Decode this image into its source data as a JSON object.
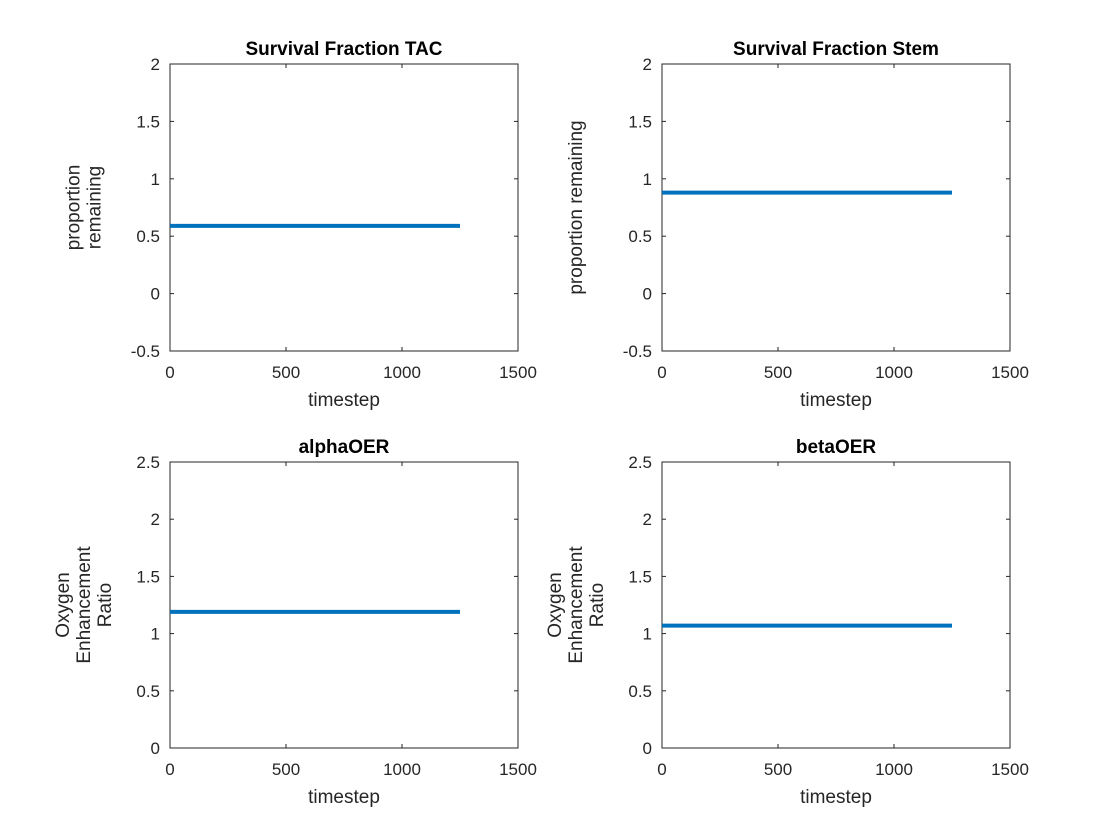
{
  "chart_data": [
    {
      "type": "line",
      "title": "Survival Fraction TAC",
      "xlabel": "timestep",
      "ylabel": [
        "proportion",
        "remaining"
      ],
      "xlim": [
        0,
        1500
      ],
      "ylim": [
        -0.5,
        2
      ],
      "xticks": [
        0,
        500,
        1000,
        1500
      ],
      "xtick_labels": [
        "0",
        "500",
        "1000",
        "1500"
      ],
      "yticks": [
        -0.5,
        0,
        0.5,
        1,
        1.5,
        2
      ],
      "ytick_labels": [
        "-0.5",
        "0",
        "0.5",
        "1",
        "1.5",
        "2"
      ],
      "grid": false,
      "color": "#0072BD",
      "series": [
        {
          "x": [
            0,
            1250
          ],
          "y": [
            0.59,
            0.59
          ]
        }
      ]
    },
    {
      "type": "line",
      "title": "Survival Fraction Stem",
      "xlabel": "timestep",
      "ylabel": [
        "proportion remaining"
      ],
      "xlim": [
        0,
        1500
      ],
      "ylim": [
        -0.5,
        2
      ],
      "xticks": [
        0,
        500,
        1000,
        1500
      ],
      "xtick_labels": [
        "0",
        "500",
        "1000",
        "1500"
      ],
      "yticks": [
        -0.5,
        0,
        0.5,
        1,
        1.5,
        2
      ],
      "ytick_labels": [
        "-0.5",
        "0",
        "0.5",
        "1",
        "1.5",
        "2"
      ],
      "grid": false,
      "color": "#0072BD",
      "series": [
        {
          "x": [
            0,
            1250
          ],
          "y": [
            0.88,
            0.88
          ]
        }
      ]
    },
    {
      "type": "line",
      "title": "alphaOER",
      "xlabel": "timestep",
      "ylabel": [
        "Oxygen",
        "Enhancement",
        "Ratio"
      ],
      "xlim": [
        0,
        1500
      ],
      "ylim": [
        0,
        2.5
      ],
      "xticks": [
        0,
        500,
        1000,
        1500
      ],
      "xtick_labels": [
        "0",
        "500",
        "1000",
        "1500"
      ],
      "yticks": [
        0,
        0.5,
        1,
        1.5,
        2,
        2.5
      ],
      "ytick_labels": [
        "0",
        "0.5",
        "1",
        "1.5",
        "2",
        "2.5"
      ],
      "grid": false,
      "color": "#0072BD",
      "series": [
        {
          "x": [
            0,
            1250
          ],
          "y": [
            1.19,
            1.19
          ]
        }
      ]
    },
    {
      "type": "line",
      "title": "betaOER",
      "xlabel": "timestep",
      "ylabel": [
        "Oxygen",
        "Enhancement",
        "Ratio"
      ],
      "xlim": [
        0,
        1500
      ],
      "ylim": [
        0,
        2.5
      ],
      "xticks": [
        0,
        500,
        1000,
        1500
      ],
      "xtick_labels": [
        "0",
        "500",
        "1000",
        "1500"
      ],
      "yticks": [
        0,
        0.5,
        1,
        1.5,
        2,
        2.5
      ],
      "ytick_labels": [
        "0",
        "0.5",
        "1",
        "1.5",
        "2",
        "2.5"
      ],
      "grid": false,
      "color": "#0072BD",
      "series": [
        {
          "x": [
            0,
            1250
          ],
          "y": [
            1.07,
            1.07
          ]
        }
      ]
    }
  ]
}
